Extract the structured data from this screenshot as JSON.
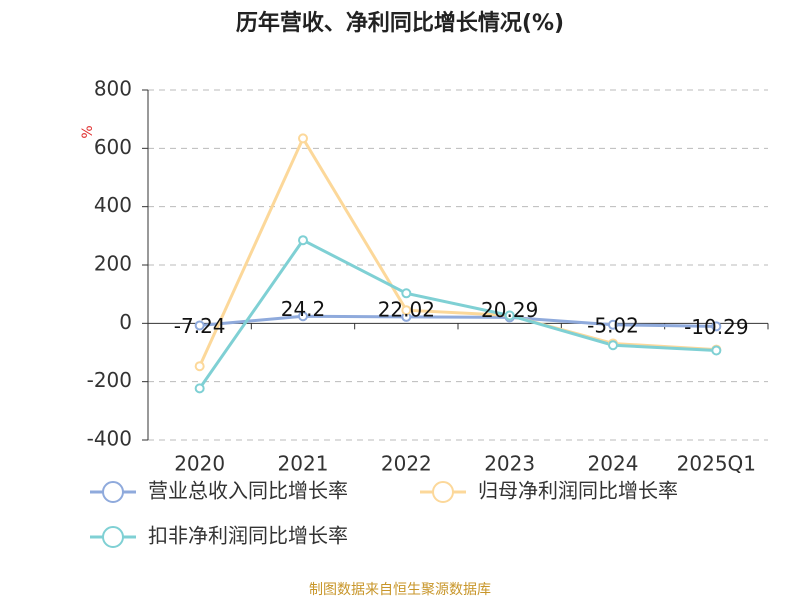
{
  "chart_data": {
    "type": "line",
    "title": "历年营收、净利同比增长情况(%)",
    "y_label": "%",
    "source": "制图数据来自恒生聚源数据库",
    "categories": [
      "2020",
      "2021",
      "2022",
      "2023",
      "2024",
      "2025Q1"
    ],
    "series": [
      {
        "name": "营业总收入同比增长率",
        "color": "#8faadc",
        "values": [
          -7.24,
          24.2,
          22.02,
          20.29,
          -5.02,
          -10.29
        ]
      },
      {
        "name": "归母净利润同比增长率",
        "color": "#fcd89a",
        "values": [
          -147,
          634,
          45,
          27,
          -69,
          -90
        ]
      },
      {
        "name": "扣非净利润同比增长率",
        "color": "#7fd0d4",
        "values": [
          -223,
          285,
          103,
          27,
          -75,
          -93
        ]
      }
    ],
    "ylim": [
      -400,
      800
    ],
    "yticks": [
      -400,
      -200,
      0,
      200,
      400,
      600,
      800
    ],
    "grid": true
  }
}
